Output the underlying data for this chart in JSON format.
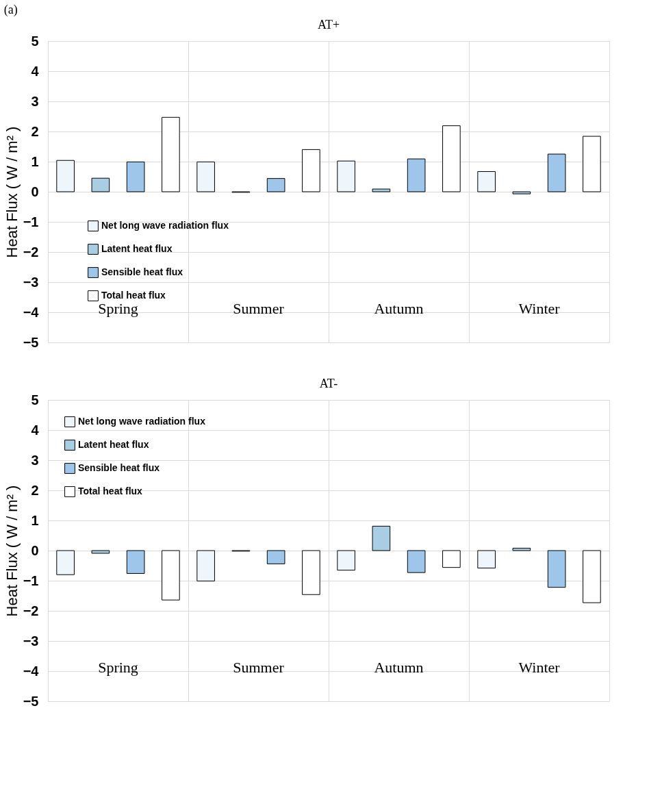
{
  "chart_data": [
    {
      "type": "bar",
      "title": "AT+",
      "ylabel": "Heat Flux ( W / m² )",
      "annotations": [
        "(a)"
      ],
      "categories": [
        "Spring",
        "Summer",
        "Autumn",
        "Winter"
      ],
      "series": [
        {
          "name": "Net long wave radiation flux",
          "color": "#eef5fb",
          "values": [
            1.04,
            0.99,
            1.02,
            0.67
          ]
        },
        {
          "name": "Latent heat flux",
          "color": "#a9cde3",
          "values": [
            0.45,
            -0.02,
            0.09,
            -0.07
          ]
        },
        {
          "name": "Sensible heat flux",
          "color": "#9dc6ea",
          "values": [
            0.99,
            0.44,
            1.09,
            1.25
          ]
        },
        {
          "name": "Total heat flux",
          "color": "#ffffff",
          "values": [
            2.47,
            1.4,
            2.19,
            1.84
          ]
        }
      ],
      "ylim": [
        -5,
        5
      ],
      "yticks": [
        -5,
        -4,
        -3,
        -2,
        -1,
        0,
        1,
        2,
        3,
        4,
        5
      ],
      "grid": true,
      "legend": "bottom left"
    },
    {
      "type": "bar",
      "title": "AT-",
      "ylabel": "Heat Flux ( W / m² )",
      "categories": [
        "Spring",
        "Summer",
        "Autumn",
        "Winter"
      ],
      "series": [
        {
          "name": "Net long wave radiation flux",
          "color": "#eef5fb",
          "values": [
            -0.8,
            -1.01,
            -0.65,
            -0.58
          ]
        },
        {
          "name": "Latent heat flux",
          "color": "#a9cde3",
          "values": [
            -0.09,
            -0.02,
            0.81,
            0.08
          ]
        },
        {
          "name": "Sensible heat flux",
          "color": "#9dc6ea",
          "values": [
            -0.76,
            -0.44,
            -0.73,
            -1.22
          ]
        },
        {
          "name": "Total heat flux",
          "color": "#ffffff",
          "values": [
            -1.64,
            -1.46,
            -0.56,
            -1.73
          ]
        }
      ],
      "ylim": [
        -5,
        5
      ],
      "yticks": [
        -5,
        -4,
        -3,
        -2,
        -1,
        0,
        1,
        2,
        3,
        4,
        5
      ],
      "grid": true,
      "legend": "top left"
    }
  ]
}
